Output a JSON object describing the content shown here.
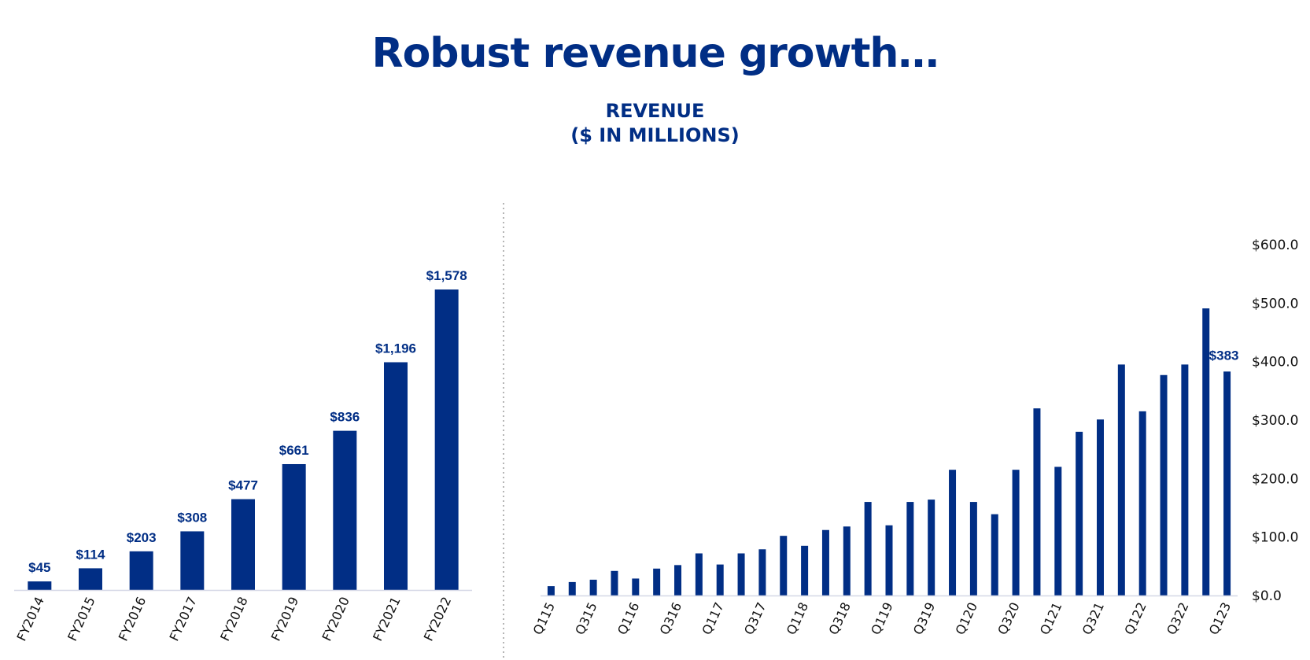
{
  "header": {
    "title": "Robust revenue growth…",
    "chart_heading_line1": "REVENUE",
    "chart_heading_line2": "($ IN MILLIONS)"
  },
  "colors": {
    "brand": "#012e85",
    "axis": "#d5d8e6",
    "divider": "#b5b5b5",
    "tick_text": "#111111"
  },
  "chart_data": [
    {
      "type": "bar",
      "categories": [
        "FY2014",
        "FY2015",
        "FY2016",
        "FY2017",
        "FY2018",
        "FY2019",
        "FY2020",
        "FY2021",
        "FY2022"
      ],
      "values": [
        45,
        114,
        203,
        308,
        477,
        661,
        836,
        1196,
        1578
      ],
      "data_labels": [
        "$45",
        "$114",
        "$203",
        "$308",
        "$477",
        "$661",
        "$836",
        "$1,196",
        "$1,578"
      ],
      "ylim": [
        0,
        1578
      ],
      "grid": false
    },
    {
      "type": "bar",
      "categories": [
        "Q115",
        "Q215",
        "Q315",
        "Q415",
        "Q116",
        "Q216",
        "Q316",
        "Q416",
        "Q117",
        "Q217",
        "Q317",
        "Q417",
        "Q118",
        "Q218",
        "Q318",
        "Q418",
        "Q119",
        "Q219",
        "Q319",
        "Q419",
        "Q120",
        "Q220",
        "Q320",
        "Q420",
        "Q121",
        "Q221",
        "Q321",
        "Q421",
        "Q122",
        "Q222",
        "Q322",
        "Q422",
        "Q123"
      ],
      "tick_labels_shown": [
        "Q115",
        "Q315",
        "Q116",
        "Q316",
        "Q117",
        "Q317",
        "Q118",
        "Q318",
        "Q119",
        "Q319",
        "Q120",
        "Q320",
        "Q121",
        "Q321",
        "Q122",
        "Q322",
        "Q123"
      ],
      "values": [
        16,
        23,
        27,
        42,
        29,
        46,
        52,
        72,
        53,
        72,
        79,
        102,
        85,
        112,
        118,
        160,
        120,
        160,
        164,
        215,
        160,
        139,
        215,
        320,
        220,
        280,
        301,
        395,
        315,
        377,
        395,
        491,
        383
      ],
      "data_labels": [
        {
          "index": 32,
          "text": "$383"
        }
      ],
      "ylim": [
        0,
        600
      ],
      "yticks": [
        0,
        100,
        200,
        300,
        400,
        500,
        600
      ],
      "ytick_labels": [
        "$0.0",
        "$100.0",
        "$200.0",
        "$300.0",
        "$400.0",
        "$500.0",
        "$600.0"
      ],
      "yaxis_position": "right",
      "grid": false
    }
  ]
}
